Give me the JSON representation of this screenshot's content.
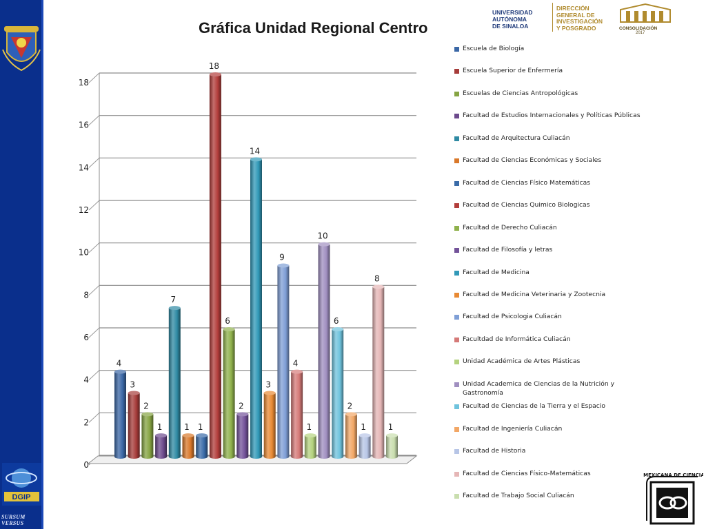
{
  "title": "Gráfica Unidad Regional Centro",
  "header": {
    "university": [
      "UNIVERSIDAD",
      "AUTÓNOMA",
      "DE SINALOA"
    ],
    "direction": [
      "DIRECCIÓN",
      "GENERAL DE",
      "INVESTIGACIÓN",
      "Y POSGRADO"
    ],
    "consolidation": "CONSOLIDACIÓN",
    "year": "2017"
  },
  "sidebar": {
    "motto": "SURSUM VERSUS",
    "dgip_label": "DGIP"
  },
  "stamp_text": "MEXICANA DE CIENCIAS",
  "colors": {
    "sidebar": "#0a2f8c",
    "header_gold": "#b08b2e",
    "header_blue": "#1f3a7a"
  },
  "chart_data": {
    "type": "bar",
    "title": "Gráfica Unidad Regional Centro",
    "xlabel": "",
    "ylabel": "",
    "ylim": [
      0,
      18
    ],
    "yticks": [
      0,
      2,
      4,
      6,
      8,
      10,
      12,
      14,
      16,
      18
    ],
    "grid": true,
    "legend_position": "right",
    "series": [
      {
        "name": "Escuela de Biología",
        "value": 4,
        "color": "#3b67a6"
      },
      {
        "name": "Escuela Superior de Enfermería",
        "value": 3,
        "color": "#a63c3a"
      },
      {
        "name": "Escuelas de Ciencias Antropológicas",
        "value": 2,
        "color": "#86a443"
      },
      {
        "name": "Facultad de  Estudios Internacionales y Políticas Públicas",
        "value": 1,
        "color": "#6c4a8c"
      },
      {
        "name": "Facultad de Arquitectura Culiacán",
        "value": 7,
        "color": "#2f8aa3"
      },
      {
        "name": "Facultad de Ciencias Económicas y Sociales",
        "value": 1,
        "color": "#d9782a"
      },
      {
        "name": "Facultad de Ciencias Físico Matemáticas",
        "value": 1,
        "color": "#3a6ba8"
      },
      {
        "name": "Facultad de Ciencias Quimico Biologicas",
        "value": 18,
        "color": "#b23d3b"
      },
      {
        "name": "Facultad de Derecho Culiacán",
        "value": 6,
        "color": "#8fb14c"
      },
      {
        "name": "Facultad de Filosofía y letras",
        "value": 2,
        "color": "#735299"
      },
      {
        "name": "Facultad de Medicina",
        "value": 14,
        "color": "#3199b8"
      },
      {
        "name": "Facultad de Medicina Veterinaria y Zootecnia",
        "value": 3,
        "color": "#e88a34"
      },
      {
        "name": "Facultad de Psicologia Culiacán",
        "value": 9,
        "color": "#7f9fd6"
      },
      {
        "name": "Facultdad de Informática Culiacán",
        "value": 4,
        "color": "#d57a78"
      },
      {
        "name": "Unidad Académica de Artes Plásticas",
        "value": 1,
        "color": "#b4d27e"
      },
      {
        "name": "Unidad Academica de Ciencias de la Nutrición y Gastronomía",
        "value": 10,
        "color": "#a08fc0"
      },
      {
        "name": "Facultad de Ciencias de la Tierra y el Espacio",
        "value": 6,
        "color": "#6fc3dd"
      },
      {
        "name": "Facultad de Ingeniería Culiacán",
        "value": 2,
        "color": "#f2a766"
      },
      {
        "name": "Facultad de Historia",
        "value": 1,
        "color": "#b7c5e6"
      },
      {
        "name": "Facultad de Ciencias Físico-Matemáticas",
        "value": 8,
        "color": "#e5b6b6"
      },
      {
        "name": "Facultad de Trabajo Social Culiacán",
        "value": 1,
        "color": "#c9deae"
      }
    ]
  }
}
